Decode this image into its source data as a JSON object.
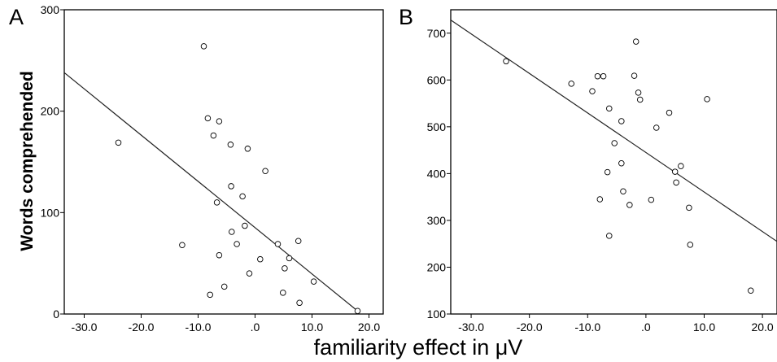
{
  "shared": {
    "ylabel": "Words comprehended",
    "xlabel": "familiarity effect in μV"
  },
  "chart_data": [
    {
      "type": "scatter",
      "panel_label": "A",
      "xlim": [
        -33.5,
        22.5
      ],
      "ylim": [
        0,
        300
      ],
      "xticks": [
        -30,
        -20,
        -10,
        0,
        10,
        20
      ],
      "xtick_labels": [
        "-30.0",
        "-20.0",
        "-10.0",
        ".0",
        "10.0",
        "20.0"
      ],
      "yticks": [
        0,
        100,
        200,
        300
      ],
      "ytick_labels": [
        "0",
        "100",
        "200",
        "300"
      ],
      "grid": false,
      "marker": "open-circle",
      "points": [
        {
          "x": -24.0,
          "y": 169
        },
        {
          "x": -12.8,
          "y": 68
        },
        {
          "x": -9.0,
          "y": 264
        },
        {
          "x": -8.3,
          "y": 193
        },
        {
          "x": -7.9,
          "y": 19
        },
        {
          "x": -7.3,
          "y": 176
        },
        {
          "x": -6.7,
          "y": 110
        },
        {
          "x": -6.3,
          "y": 190
        },
        {
          "x": -6.3,
          "y": 58
        },
        {
          "x": -5.4,
          "y": 27
        },
        {
          "x": -4.3,
          "y": 167
        },
        {
          "x": -4.2,
          "y": 126
        },
        {
          "x": -4.1,
          "y": 81
        },
        {
          "x": -3.2,
          "y": 69
        },
        {
          "x": -2.2,
          "y": 116
        },
        {
          "x": -1.8,
          "y": 87
        },
        {
          "x": -1.3,
          "y": 163
        },
        {
          "x": -1.0,
          "y": 40
        },
        {
          "x": 0.9,
          "y": 54
        },
        {
          "x": 1.8,
          "y": 141
        },
        {
          "x": 4.0,
          "y": 69
        },
        {
          "x": 4.9,
          "y": 21
        },
        {
          "x": 5.2,
          "y": 45
        },
        {
          "x": 6.0,
          "y": 55
        },
        {
          "x": 7.6,
          "y": 72
        },
        {
          "x": 7.8,
          "y": 11
        },
        {
          "x": 10.3,
          "y": 32
        },
        {
          "x": 18.0,
          "y": 3
        }
      ],
      "fit_line": {
        "x": [
          -33.5,
          18.0
        ],
        "y": [
          238,
          3
        ]
      }
    },
    {
      "type": "scatter",
      "panel_label": "B",
      "xlim": [
        -33.5,
        22.5
      ],
      "ylim": [
        100,
        750
      ],
      "xticks": [
        -30,
        -20,
        -10,
        0,
        10,
        20
      ],
      "xtick_labels": [
        "-30.0",
        "-20.0",
        "-10.0",
        ".0",
        "10.0",
        "20.0"
      ],
      "yticks": [
        100,
        200,
        300,
        400,
        500,
        600,
        700
      ],
      "ytick_labels": [
        "100",
        "200",
        "300",
        "400",
        "500",
        "600",
        "700"
      ],
      "grid": false,
      "marker": "open-circle",
      "points": [
        {
          "x": -24.0,
          "y": 640
        },
        {
          "x": -12.8,
          "y": 592
        },
        {
          "x": -9.2,
          "y": 576
        },
        {
          "x": -8.3,
          "y": 608
        },
        {
          "x": -7.9,
          "y": 345
        },
        {
          "x": -7.3,
          "y": 608
        },
        {
          "x": -6.6,
          "y": 403
        },
        {
          "x": -6.3,
          "y": 539
        },
        {
          "x": -6.3,
          "y": 267
        },
        {
          "x": -5.4,
          "y": 465
        },
        {
          "x": -4.2,
          "y": 512
        },
        {
          "x": -4.2,
          "y": 422
        },
        {
          "x": -3.9,
          "y": 362
        },
        {
          "x": -2.8,
          "y": 333
        },
        {
          "x": -2.0,
          "y": 609
        },
        {
          "x": -1.7,
          "y": 682
        },
        {
          "x": -1.3,
          "y": 573
        },
        {
          "x": -1.0,
          "y": 558
        },
        {
          "x": 0.9,
          "y": 344
        },
        {
          "x": 1.8,
          "y": 498
        },
        {
          "x": 4.0,
          "y": 530
        },
        {
          "x": 5.0,
          "y": 404
        },
        {
          "x": 5.2,
          "y": 381
        },
        {
          "x": 6.0,
          "y": 416
        },
        {
          "x": 7.4,
          "y": 327
        },
        {
          "x": 7.6,
          "y": 248
        },
        {
          "x": 10.5,
          "y": 559
        },
        {
          "x": 18.0,
          "y": 150
        }
      ],
      "fit_line": {
        "x": [
          -33.5,
          22.5
        ],
        "y": [
          728,
          255
        ]
      }
    }
  ]
}
